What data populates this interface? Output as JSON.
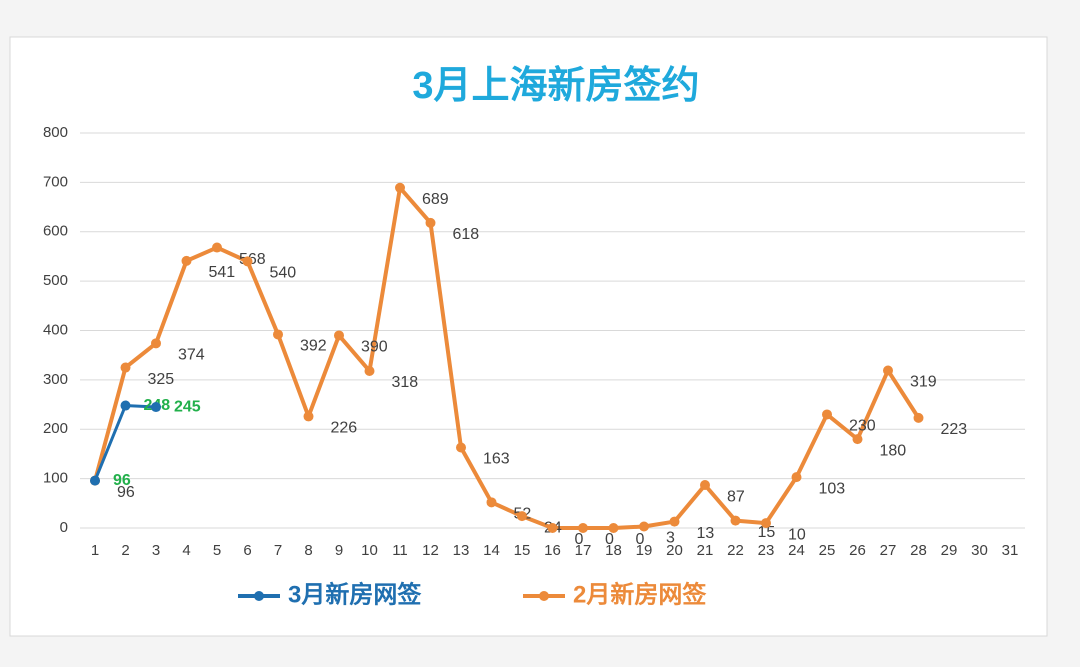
{
  "chart_data": {
    "type": "line",
    "title": "3月上海新房签约",
    "categories": [
      "1",
      "2",
      "3",
      "4",
      "5",
      "6",
      "7",
      "8",
      "9",
      "10",
      "11",
      "12",
      "13",
      "14",
      "15",
      "16",
      "17",
      "18",
      "19",
      "20",
      "21",
      "22",
      "23",
      "24",
      "25",
      "26",
      "27",
      "28",
      "29",
      "30",
      "31"
    ],
    "series": [
      {
        "name": "3月新房网签",
        "color": "#1f6fb0",
        "label_color": "#22b04b",
        "values": [
          96,
          248,
          245,
          null,
          null,
          null,
          null,
          null,
          null,
          null,
          null,
          null,
          null,
          null,
          null,
          null,
          null,
          null,
          null,
          null,
          null,
          null,
          null,
          null,
          null,
          null,
          null,
          null,
          null,
          null,
          null
        ]
      },
      {
        "name": "2月新房网签",
        "color": "#ec8a3a",
        "label_color": "#404040",
        "values": [
          96,
          325,
          374,
          541,
          568,
          540,
          392,
          226,
          390,
          318,
          689,
          618,
          163,
          52,
          24,
          0,
          0,
          0,
          3,
          13,
          87,
          15,
          10,
          103,
          230,
          180,
          319,
          223,
          null,
          null,
          null
        ]
      }
    ],
    "ylim": [
      0,
      800
    ],
    "yticks": [
      0,
      100,
      200,
      300,
      400,
      500,
      600,
      700,
      800
    ],
    "grid": true,
    "legend": "bottom"
  }
}
